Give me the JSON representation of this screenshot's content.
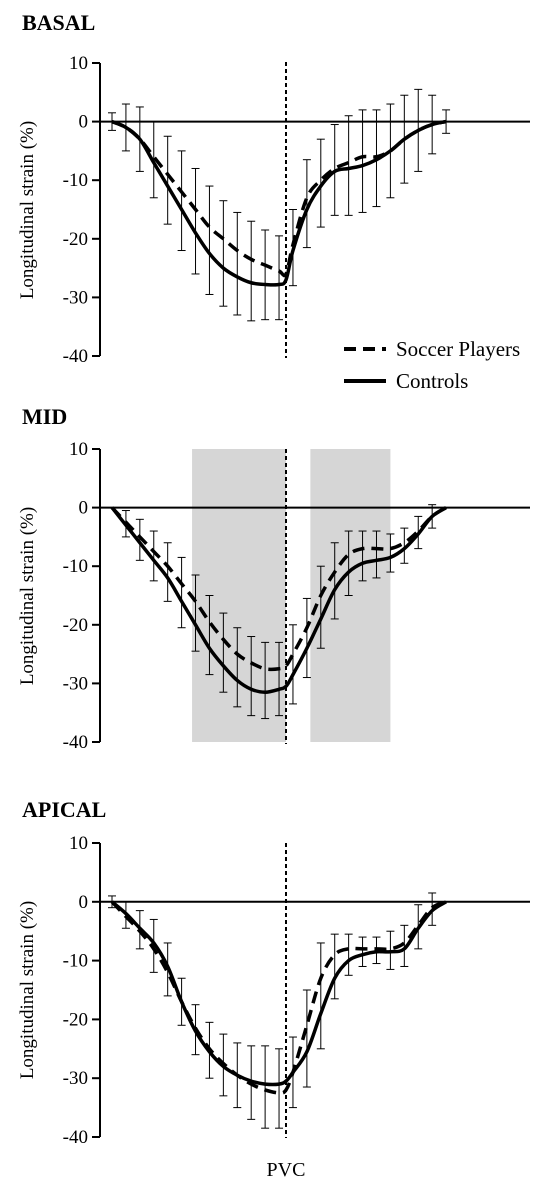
{
  "chart_data": [
    {
      "type": "line",
      "title": "BASAL",
      "ylabel": "Longitudinal strain (%)",
      "ylim": [
        -40,
        10
      ],
      "yticks": [
        "10",
        "0",
        "-10",
        "-20",
        "-30",
        "-40"
      ],
      "xlim": [
        0,
        100
      ],
      "pvc_x": 50,
      "shaded_regions": [],
      "series": [
        {
          "name": "Soccer Players",
          "style": "dashed",
          "x": [
            0,
            4,
            8,
            12,
            16,
            20,
            24,
            28,
            32,
            36,
            40,
            44,
            48,
            50,
            52,
            56,
            60,
            64,
            68,
            72,
            76,
            80,
            84,
            88,
            92,
            96
          ],
          "y": [
            0,
            -1,
            -3,
            -6,
            -9,
            -12,
            -15,
            -18,
            -20,
            -22,
            -23.5,
            -24.5,
            -25.5,
            -26,
            -21,
            -13,
            -10,
            -8,
            -7,
            -6,
            -6,
            -5,
            -3,
            -1.5,
            -0.5,
            0
          ]
        },
        {
          "name": "Controls",
          "style": "solid",
          "x": [
            0,
            4,
            8,
            12,
            16,
            20,
            24,
            28,
            32,
            36,
            40,
            44,
            48,
            50,
            52,
            56,
            60,
            64,
            68,
            72,
            76,
            80,
            84,
            88,
            92,
            96
          ],
          "y": [
            0,
            -1,
            -3,
            -7,
            -11,
            -15,
            -19,
            -22.5,
            -25,
            -26.5,
            -27.5,
            -27.8,
            -27.8,
            -27,
            -22,
            -15,
            -11,
            -8.5,
            -8,
            -7.5,
            -6.5,
            -5,
            -3,
            -1.5,
            -0.5,
            0
          ]
        }
      ],
      "error_bars": {
        "x": [
          0,
          4,
          8,
          12,
          16,
          20,
          24,
          28,
          32,
          36,
          40,
          44,
          48,
          52,
          56,
          60,
          64,
          68,
          72,
          76,
          80,
          84,
          88,
          92,
          96
        ],
        "sd": [
          1.5,
          4,
          5.5,
          6,
          6.5,
          7,
          7,
          7,
          6.5,
          6.5,
          6.5,
          6,
          6,
          6,
          6.5,
          7,
          7.5,
          8,
          8,
          8,
          8,
          7.5,
          7,
          5,
          2
        ]
      }
    },
    {
      "type": "line",
      "title": "MID",
      "ylabel": "Longitudinal strain (%)",
      "ylim": [
        -40,
        10
      ],
      "yticks": [
        "10",
        "0",
        "-10",
        "-20",
        "-30",
        "-40"
      ],
      "xlim": [
        0,
        100
      ],
      "pvc_x": 50,
      "shaded_regions": [
        [
          23,
          50
        ],
        [
          57,
          80
        ]
      ],
      "series": [
        {
          "name": "Soccer Players",
          "style": "dashed",
          "x": [
            0,
            4,
            8,
            12,
            16,
            20,
            24,
            28,
            32,
            36,
            40,
            44,
            48,
            50,
            52,
            56,
            60,
            64,
            68,
            72,
            76,
            80,
            84,
            88,
            92,
            96
          ],
          "y": [
            0,
            -2.5,
            -5,
            -7.5,
            -10,
            -13,
            -16,
            -19.5,
            -22.5,
            -25,
            -26.5,
            -27.5,
            -27.5,
            -27,
            -25,
            -20.5,
            -15,
            -11,
            -8,
            -7,
            -7,
            -7,
            -6,
            -4,
            -1.5,
            0
          ]
        },
        {
          "name": "Controls",
          "style": "solid",
          "x": [
            0,
            4,
            8,
            12,
            16,
            20,
            24,
            28,
            32,
            36,
            40,
            44,
            48,
            50,
            52,
            56,
            60,
            64,
            68,
            72,
            76,
            80,
            84,
            88,
            92,
            96
          ],
          "y": [
            0,
            -3,
            -6,
            -9,
            -12,
            -16,
            -20,
            -24,
            -27,
            -29.5,
            -31,
            -31.5,
            -31,
            -30.5,
            -28.5,
            -24,
            -19,
            -14,
            -11,
            -9.5,
            -9,
            -8.5,
            -7,
            -4.5,
            -1.5,
            0
          ]
        }
      ],
      "error_bars": {
        "x": [
          4,
          8,
          12,
          16,
          20,
          24,
          28,
          32,
          36,
          40,
          44,
          48,
          52,
          56,
          60,
          64,
          68,
          72,
          76,
          80,
          84,
          88,
          92
        ],
        "sd": [
          2,
          3,
          3.5,
          4,
          4.5,
          4.5,
          4.5,
          4.5,
          4.5,
          4.5,
          4.5,
          4.5,
          5,
          5,
          5,
          5,
          4,
          3,
          3,
          2.5,
          2.5,
          2.5,
          2
        ]
      }
    },
    {
      "type": "line",
      "title": "APICAL",
      "ylabel": "Longitudinal strain (%)",
      "ylim": [
        -40,
        10
      ],
      "yticks": [
        "10",
        "0",
        "-10",
        "-20",
        "-30",
        "-40"
      ],
      "xlim": [
        0,
        100
      ],
      "pvc_x": 50,
      "shaded_regions": [],
      "series": [
        {
          "name": "Soccer Players",
          "style": "dashed",
          "x": [
            0,
            4,
            8,
            12,
            16,
            20,
            24,
            28,
            32,
            36,
            40,
            44,
            48,
            50,
            52,
            56,
            60,
            64,
            68,
            72,
            76,
            80,
            84,
            88,
            92,
            96
          ],
          "y": [
            0,
            -2.5,
            -5,
            -8,
            -12,
            -17,
            -21.5,
            -25,
            -27.5,
            -29.5,
            -31,
            -32,
            -32.5,
            -32,
            -29,
            -21,
            -13,
            -9,
            -8,
            -8,
            -8,
            -8,
            -7,
            -4,
            -1,
            0
          ]
        },
        {
          "name": "Controls",
          "style": "solid",
          "x": [
            0,
            4,
            8,
            12,
            16,
            20,
            24,
            28,
            32,
            36,
            40,
            44,
            48,
            50,
            52,
            56,
            60,
            64,
            68,
            72,
            76,
            80,
            84,
            88,
            92,
            96
          ],
          "y": [
            0,
            -2,
            -4.5,
            -7,
            -11,
            -17,
            -22,
            -25.5,
            -28,
            -29.5,
            -30.5,
            -31,
            -31,
            -30.5,
            -29,
            -25.5,
            -19,
            -13,
            -10,
            -9,
            -8.5,
            -8.5,
            -8,
            -4.5,
            -1.5,
            0
          ]
        }
      ],
      "error_bars": {
        "x": [
          0,
          4,
          8,
          12,
          16,
          20,
          24,
          28,
          32,
          36,
          40,
          44,
          48,
          52,
          56,
          60,
          64,
          68,
          72,
          76,
          80,
          84,
          88,
          92
        ],
        "sd": [
          1,
          2,
          3,
          4,
          4,
          4,
          4,
          4.5,
          5,
          5.5,
          6,
          6.5,
          6,
          6,
          6,
          6,
          3.5,
          2.5,
          2,
          2,
          3,
          3,
          3.5,
          2.5
        ]
      }
    }
  ],
  "legend": [
    {
      "label": "Soccer Players",
      "style": "dashed"
    },
    {
      "label": "Controls",
      "style": "solid"
    }
  ],
  "xlabel": "PVC"
}
